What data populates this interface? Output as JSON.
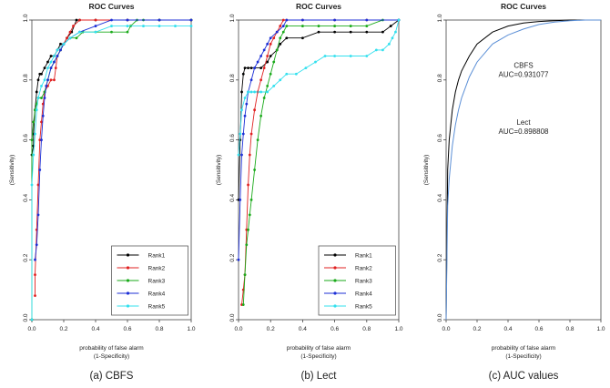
{
  "chart_data": [
    {
      "type": "line",
      "title": "ROC Curves",
      "xlabel": "probability  of false alarm\n(1-Specificity)",
      "ylabel": "(Sensitivity)",
      "caption": "(a) CBFS",
      "xlim": [
        0,
        1
      ],
      "ylim": [
        0,
        1
      ],
      "x_ticks": [
        "0.0",
        "0.2",
        "0.4",
        "0.6",
        "0.8",
        "1.0"
      ],
      "y_ticks": [
        "0.0",
        "0.2",
        "0.4",
        "0.6",
        "0.8",
        "1.0"
      ],
      "legend_position": "bottom-right",
      "series": [
        {
          "name": "Rank1",
          "color": "#000000",
          "x": [
            0,
            0,
            0.01,
            0.01,
            0.02,
            0.03,
            0.04,
            0.05,
            0.06,
            0.08,
            0.1,
            0.12,
            0.14,
            0.16,
            0.18,
            0.2,
            0.22,
            0.25,
            0.28,
            0.3,
            0.4,
            0.6,
            0.8,
            1.0
          ],
          "y": [
            0,
            0.55,
            0.58,
            0.62,
            0.7,
            0.76,
            0.8,
            0.82,
            0.82,
            0.84,
            0.86,
            0.88,
            0.88,
            0.9,
            0.92,
            0.92,
            0.94,
            0.96,
            1.0,
            1.0,
            1.0,
            1.0,
            1.0,
            1.0
          ]
        },
        {
          "name": "Rank2",
          "color": "#e02020",
          "x": [
            0.02,
            0.02,
            0.03,
            0.04,
            0.05,
            0.06,
            0.07,
            0.08,
            0.1,
            0.12,
            0.14,
            0.15,
            0.16,
            0.18,
            0.2,
            0.22,
            0.24,
            0.26,
            0.3,
            0.4,
            0.6,
            0.8,
            1.0
          ],
          "y": [
            0.08,
            0.15,
            0.3,
            0.45,
            0.6,
            0.66,
            0.72,
            0.76,
            0.78,
            0.8,
            0.8,
            0.84,
            0.88,
            0.9,
            0.92,
            0.94,
            0.96,
            0.98,
            1.0,
            1.0,
            1.0,
            1.0,
            1.0
          ]
        },
        {
          "name": "Rank3",
          "color": "#1aaa1a",
          "x": [
            0,
            0,
            0.01,
            0.02,
            0.03,
            0.04,
            0.06,
            0.08,
            0.1,
            0.12,
            0.14,
            0.16,
            0.18,
            0.2,
            0.24,
            0.28,
            0.32,
            0.4,
            0.5,
            0.6,
            0.62,
            0.66,
            0.7,
            0.8,
            1.0
          ],
          "y": [
            0,
            0.6,
            0.66,
            0.7,
            0.72,
            0.74,
            0.74,
            0.76,
            0.8,
            0.84,
            0.86,
            0.88,
            0.9,
            0.92,
            0.94,
            0.94,
            0.96,
            0.96,
            0.96,
            0.96,
            0.98,
            1.0,
            1.0,
            1.0,
            1.0
          ]
        },
        {
          "name": "Rank4",
          "color": "#1c2fd6",
          "x": [
            0.02,
            0.03,
            0.04,
            0.05,
            0.06,
            0.07,
            0.08,
            0.09,
            0.1,
            0.12,
            0.14,
            0.16,
            0.18,
            0.2,
            0.24,
            0.3,
            0.4,
            0.5,
            0.6,
            0.8,
            1.0
          ],
          "y": [
            0.2,
            0.25,
            0.35,
            0.5,
            0.6,
            0.68,
            0.74,
            0.78,
            0.8,
            0.84,
            0.86,
            0.88,
            0.9,
            0.92,
            0.94,
            0.96,
            0.98,
            1.0,
            1.0,
            1.0,
            1.0
          ]
        },
        {
          "name": "Rank5",
          "color": "#33e0ee",
          "x": [
            0,
            0,
            0.01,
            0.02,
            0.03,
            0.04,
            0.06,
            0.08,
            0.1,
            0.12,
            0.14,
            0.16,
            0.2,
            0.24,
            0.3,
            0.4,
            0.5,
            0.6,
            0.7,
            0.8,
            0.9,
            1.0
          ],
          "y": [
            0,
            0.45,
            0.55,
            0.62,
            0.7,
            0.74,
            0.78,
            0.8,
            0.84,
            0.86,
            0.88,
            0.9,
            0.92,
            0.94,
            0.96,
            0.96,
            0.98,
            0.98,
            0.98,
            0.98,
            0.98,
            0.98
          ]
        }
      ]
    },
    {
      "type": "line",
      "title": "ROC Curves",
      "xlabel": "probability  of false alarm\n(1-Specificity)",
      "ylabel": "(Sensitivity)",
      "caption": "(b) Lect",
      "xlim": [
        0,
        1
      ],
      "ylim": [
        0,
        1
      ],
      "x_ticks": [
        "0.0",
        "0.2",
        "0.4",
        "0.6",
        "0.8",
        "1.0"
      ],
      "y_ticks": [
        "0.0",
        "0.2",
        "0.4",
        "0.6",
        "0.8",
        "1.0"
      ],
      "legend_position": "bottom-right",
      "series": [
        {
          "name": "Rank1",
          "color": "#000000",
          "x": [
            0,
            0.01,
            0.02,
            0.03,
            0.04,
            0.06,
            0.08,
            0.1,
            0.14,
            0.18,
            0.2,
            0.24,
            0.26,
            0.3,
            0.4,
            0.5,
            0.6,
            0.7,
            0.8,
            0.9,
            0.95,
            1.0
          ],
          "y": [
            0.4,
            0.6,
            0.76,
            0.82,
            0.84,
            0.84,
            0.84,
            0.84,
            0.84,
            0.86,
            0.88,
            0.9,
            0.92,
            0.94,
            0.94,
            0.96,
            0.96,
            0.96,
            0.96,
            0.96,
            0.98,
            1.0
          ]
        },
        {
          "name": "Rank2",
          "color": "#e02020",
          "x": [
            0.02,
            0.03,
            0.04,
            0.05,
            0.06,
            0.07,
            0.08,
            0.1,
            0.12,
            0.14,
            0.16,
            0.18,
            0.2,
            0.22,
            0.24,
            0.26,
            0.28,
            0.3,
            0.4,
            0.6,
            0.8,
            1.0
          ],
          "y": [
            0.05,
            0.1,
            0.15,
            0.3,
            0.45,
            0.55,
            0.62,
            0.7,
            0.76,
            0.8,
            0.84,
            0.88,
            0.92,
            0.94,
            0.96,
            0.98,
            1.0,
            1.0,
            1.0,
            1.0,
            1.0,
            1.0
          ]
        },
        {
          "name": "Rank3",
          "color": "#1aaa1a",
          "x": [
            0.03,
            0.04,
            0.05,
            0.06,
            0.07,
            0.08,
            0.1,
            0.12,
            0.14,
            0.16,
            0.18,
            0.2,
            0.22,
            0.24,
            0.26,
            0.28,
            0.3,
            0.4,
            0.5,
            0.6,
            0.7,
            0.8,
            0.9,
            1.0
          ],
          "y": [
            0.05,
            0.15,
            0.25,
            0.3,
            0.35,
            0.4,
            0.5,
            0.6,
            0.68,
            0.74,
            0.78,
            0.82,
            0.86,
            0.9,
            0.94,
            0.96,
            0.98,
            0.98,
            0.98,
            0.98,
            0.98,
            0.98,
            1.0,
            1.0
          ]
        },
        {
          "name": "Rank4",
          "color": "#1c2fd6",
          "x": [
            0,
            0.01,
            0.02,
            0.03,
            0.04,
            0.05,
            0.06,
            0.08,
            0.1,
            0.12,
            0.14,
            0.16,
            0.18,
            0.2,
            0.24,
            0.28,
            0.3,
            0.4,
            0.6,
            0.8,
            1.0
          ],
          "y": [
            0.2,
            0.4,
            0.55,
            0.62,
            0.68,
            0.72,
            0.76,
            0.8,
            0.84,
            0.86,
            0.88,
            0.9,
            0.92,
            0.94,
            0.96,
            0.98,
            1.0,
            1.0,
            1.0,
            1.0,
            1.0
          ]
        },
        {
          "name": "Rank5",
          "color": "#33e0ee",
          "x": [
            0,
            0.01,
            0.02,
            0.04,
            0.06,
            0.08,
            0.1,
            0.14,
            0.18,
            0.22,
            0.26,
            0.3,
            0.36,
            0.42,
            0.48,
            0.54,
            0.6,
            0.7,
            0.8,
            0.86,
            0.9,
            0.94,
            0.96,
            0.98,
            1.0
          ],
          "y": [
            0.55,
            0.62,
            0.7,
            0.74,
            0.76,
            0.76,
            0.76,
            0.76,
            0.76,
            0.78,
            0.8,
            0.82,
            0.82,
            0.84,
            0.86,
            0.88,
            0.88,
            0.88,
            0.88,
            0.9,
            0.9,
            0.92,
            0.94,
            0.96,
            1.0
          ]
        }
      ]
    },
    {
      "type": "line",
      "title": "ROC Curves",
      "xlabel": "probability  of false alarm\n(1-Specificity)",
      "ylabel": "(Sensitivity)",
      "caption": "(c) AUC values",
      "xlim": [
        0,
        1
      ],
      "ylim": [
        0,
        1
      ],
      "x_ticks": [
        "0.0",
        "0.2",
        "0.4",
        "0.6",
        "0.8",
        "1.0"
      ],
      "y_ticks": [
        "0.0",
        "0.2",
        "0.4",
        "0.6",
        "0.8",
        "1.0"
      ],
      "series": [
        {
          "name": "CBFS",
          "color": "#000000",
          "auc_label": "AUC=0.931077",
          "x": [
            0,
            0.01,
            0.02,
            0.04,
            0.06,
            0.08,
            0.1,
            0.15,
            0.2,
            0.3,
            0.4,
            0.5,
            0.6,
            0.7,
            0.8,
            0.9,
            1.0
          ],
          "y": [
            0,
            0.5,
            0.6,
            0.7,
            0.76,
            0.8,
            0.83,
            0.88,
            0.92,
            0.96,
            0.98,
            0.99,
            0.995,
            0.998,
            1.0,
            1.0,
            1.0
          ]
        },
        {
          "name": "Lect",
          "color": "#5b8fd6",
          "auc_label": "AUC=0.898808",
          "x": [
            0,
            0.01,
            0.02,
            0.04,
            0.06,
            0.08,
            0.1,
            0.15,
            0.2,
            0.3,
            0.4,
            0.5,
            0.6,
            0.7,
            0.8,
            0.9,
            1.0
          ],
          "y": [
            0,
            0.38,
            0.47,
            0.58,
            0.65,
            0.7,
            0.74,
            0.81,
            0.86,
            0.92,
            0.95,
            0.97,
            0.985,
            0.993,
            0.998,
            1.0,
            1.0
          ]
        }
      ]
    }
  ]
}
